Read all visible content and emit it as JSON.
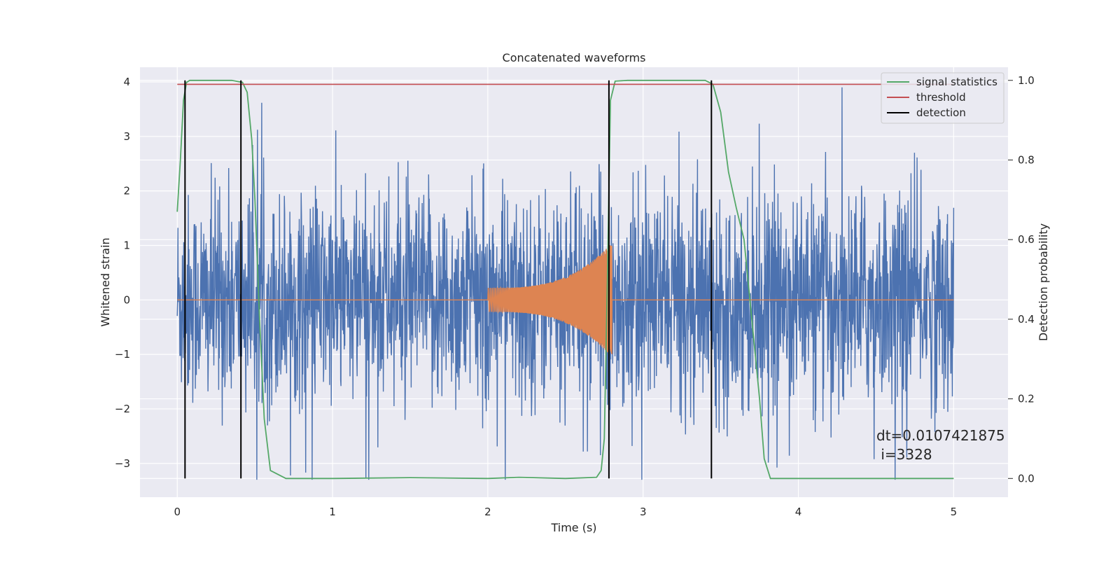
{
  "chart_data": {
    "type": "line",
    "title": "Concatenated waveforms",
    "xlabel": "Time (s)",
    "ylabel": "Whitened strain",
    "y2label": "Detection probability",
    "xlim": [
      -0.24,
      5.35
    ],
    "ylim": [
      -3.62,
      4.27
    ],
    "y2lim": [
      -0.047,
      1.033
    ],
    "xticks": [
      0,
      1,
      2,
      3,
      4,
      5
    ],
    "yticks": [
      -3,
      -2,
      -1,
      0,
      1,
      2,
      3,
      4
    ],
    "y2ticks": [
      0.0,
      0.2,
      0.4,
      0.6,
      0.8,
      1.0
    ],
    "xtick_labels": [
      "0",
      "1",
      "2",
      "3",
      "4",
      "5"
    ],
    "ytick_labels": [
      "−3",
      "−2",
      "−1",
      "0",
      "1",
      "2",
      "3",
      "4"
    ],
    "y2tick_labels": [
      "0.0",
      "0.2",
      "0.4",
      "0.6",
      "0.8",
      "1.0"
    ],
    "grid": true,
    "legend_position": "top-right",
    "series": [
      {
        "name": "",
        "axis": "left",
        "description_visible": "whitened noise strain",
        "color": "#4c72b0",
        "x_range": [
          0,
          5
        ],
        "amplitude_envelope": [
          -3.3,
          3.9
        ]
      },
      {
        "name": "",
        "axis": "left",
        "color": "#dd8452",
        "chirp_start": 2.0,
        "chirp_end": 2.8,
        "x_range": [
          0,
          5
        ],
        "peak_amplitude": 1.05
      },
      {
        "name": "signal statistics",
        "axis": "right",
        "color": "#55a868",
        "x": [
          0.0,
          0.02,
          0.04,
          0.06,
          0.08,
          0.12,
          0.35,
          0.42,
          0.45,
          0.48,
          0.5,
          0.53,
          0.56,
          0.6,
          0.7,
          1.0,
          1.5,
          2.0,
          2.2,
          2.5,
          2.7,
          2.73,
          2.75,
          2.77,
          2.79,
          2.82,
          2.9,
          3.4,
          3.45,
          3.5,
          3.55,
          3.6,
          3.65,
          3.7,
          3.75,
          3.78,
          3.82,
          4.0,
          5.0
        ],
        "y": [
          0.67,
          0.8,
          0.95,
          0.995,
          1.0,
          1.0,
          1.0,
          0.995,
          0.97,
          0.85,
          0.7,
          0.4,
          0.15,
          0.02,
          0.0,
          0.0,
          0.002,
          0.0,
          0.003,
          0.0,
          0.003,
          0.02,
          0.1,
          0.5,
          0.95,
          0.998,
          1.0,
          1.0,
          0.99,
          0.92,
          0.77,
          0.68,
          0.6,
          0.4,
          0.2,
          0.05,
          0.0,
          0.0,
          0.0
        ]
      },
      {
        "name": "threshold",
        "axis": "right",
        "color": "#c44e52",
        "x": [
          0,
          5
        ],
        "y": [
          0.99,
          0.99
        ]
      },
      {
        "name": "detection",
        "axis": "right",
        "color": "#000000",
        "x": [
          0.05,
          0.41,
          2.78,
          3.44
        ],
        "y_range": [
          0.0,
          1.0
        ]
      }
    ],
    "annotation": "dt=0.0107421875\n i=3328"
  },
  "annotation_lines": [
    "dt=0.0107421875",
    " i=3328"
  ],
  "colors": {
    "background": "#eaeaf2",
    "grid": "#ffffff",
    "noise": "#4c72b0",
    "chirp": "#dd8452"
  }
}
